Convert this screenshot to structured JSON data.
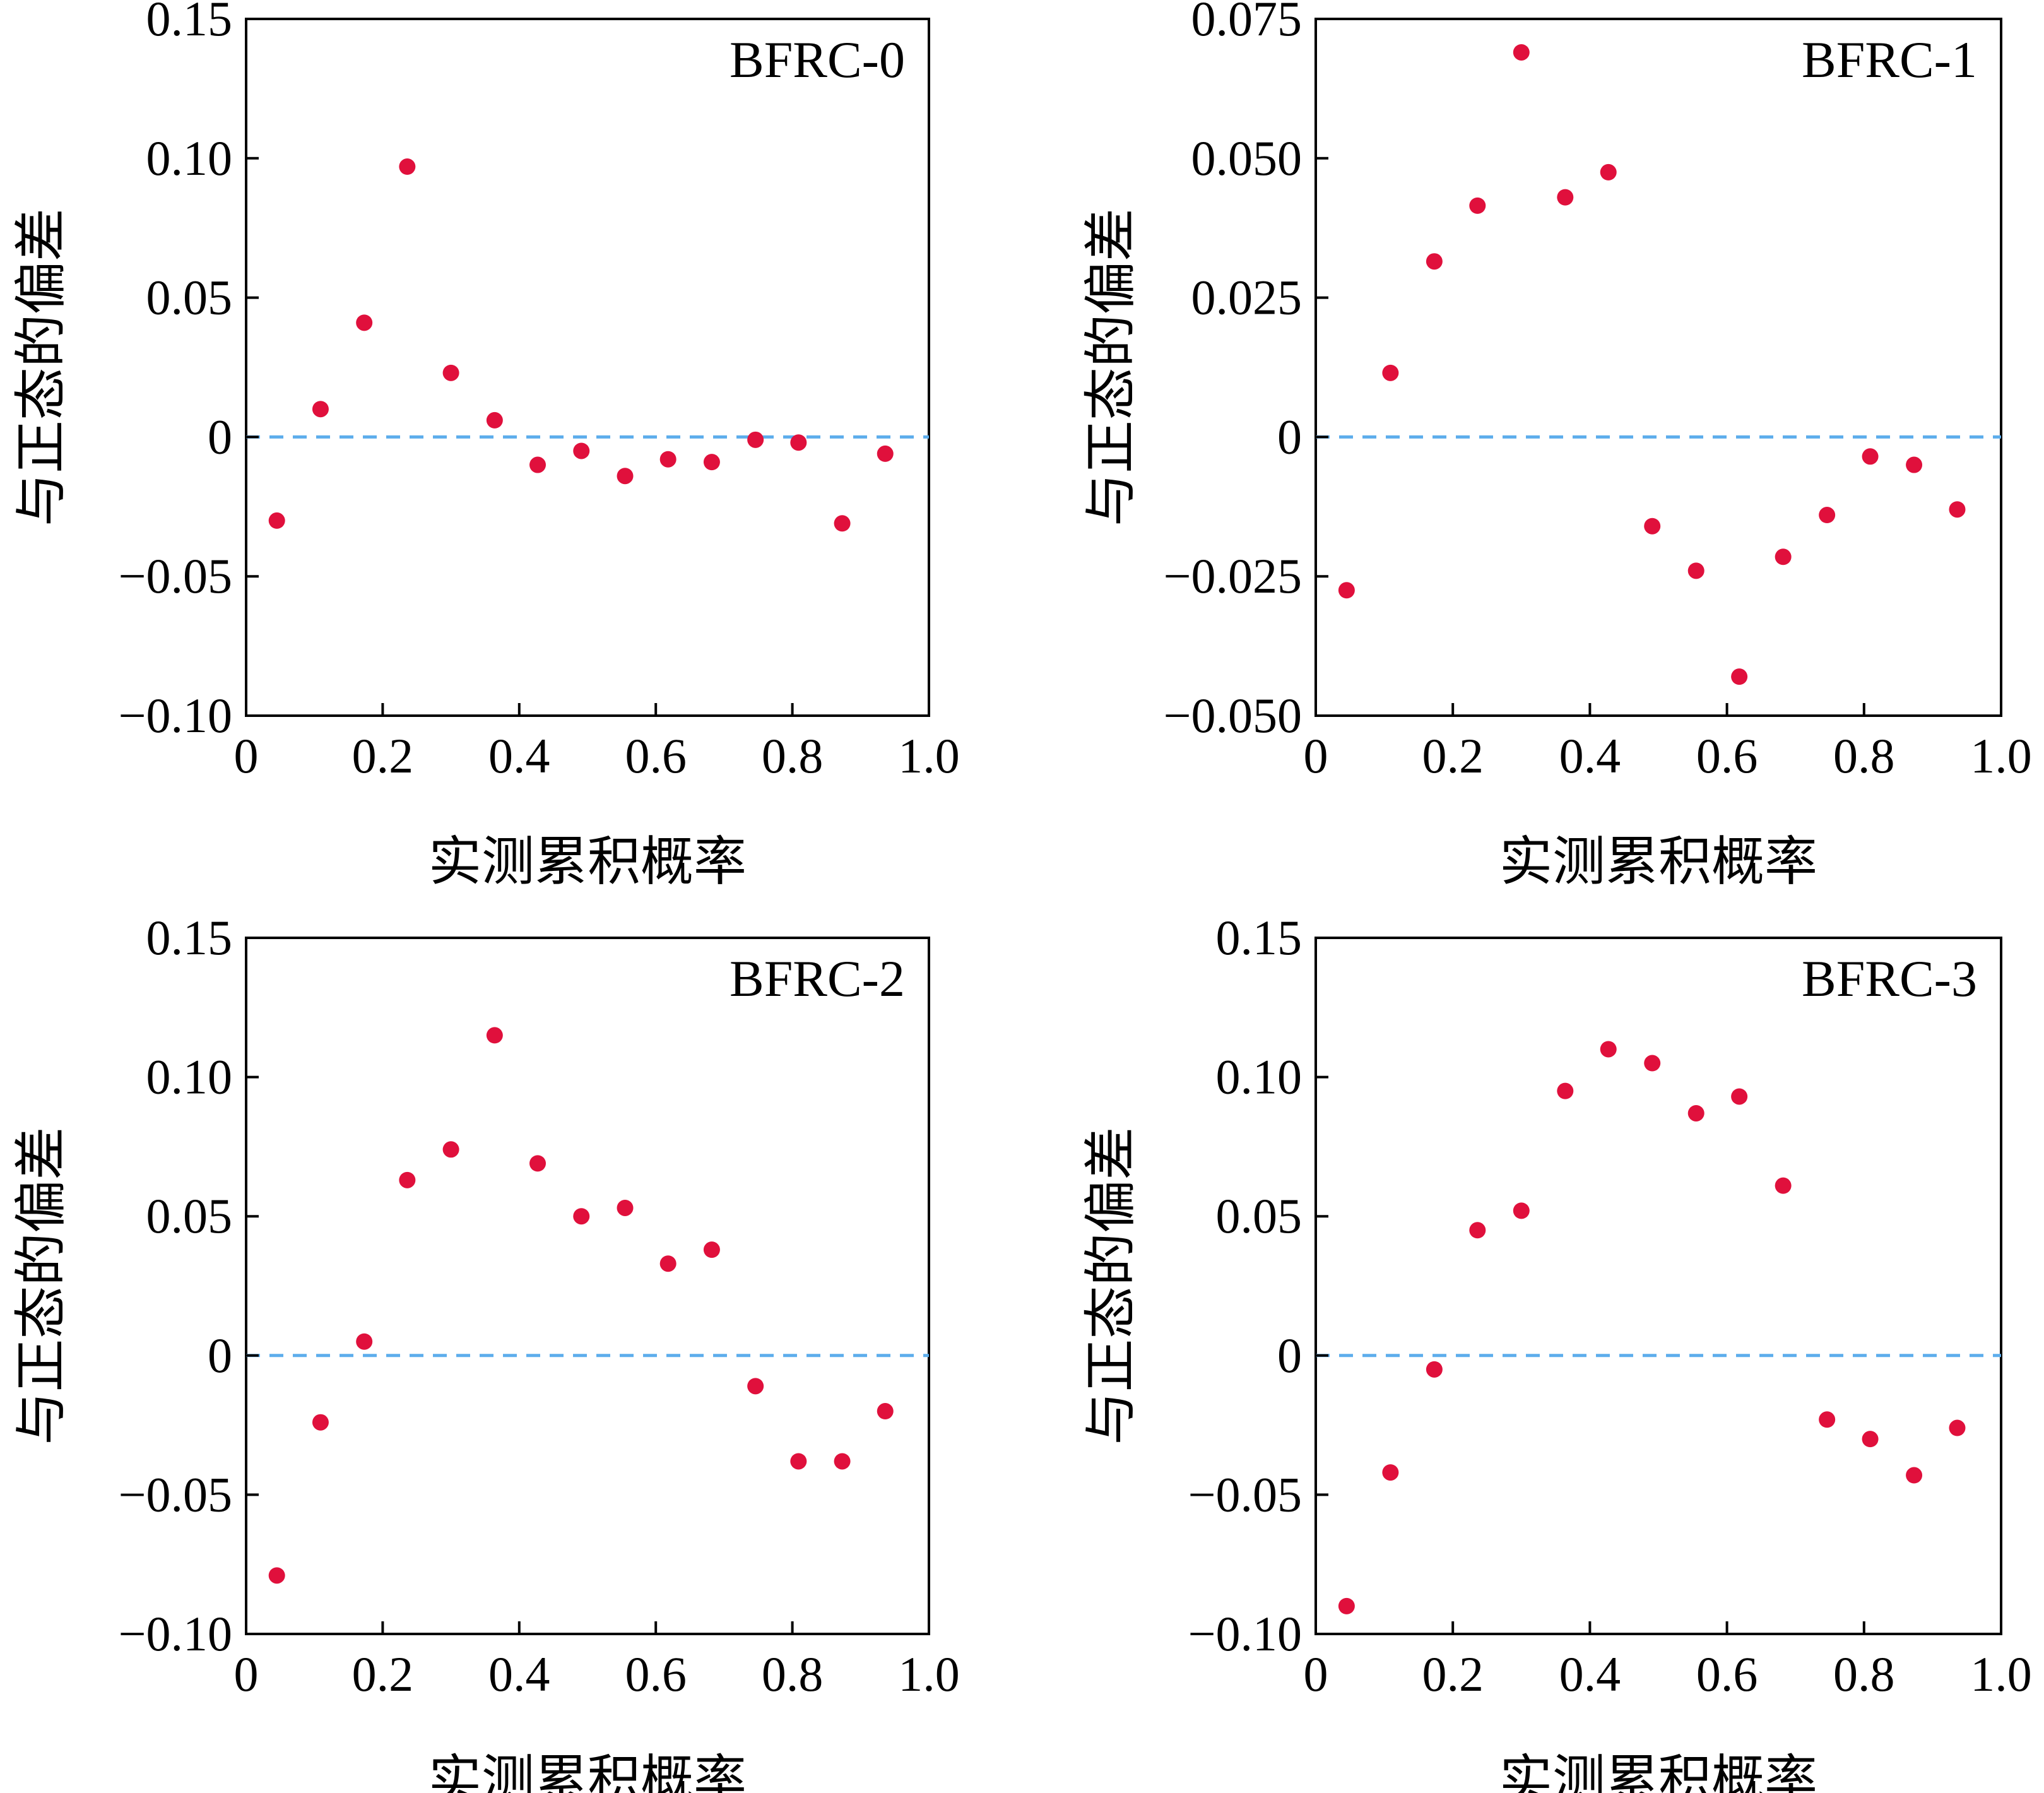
{
  "colors": {
    "point": "#E0103C",
    "zero_line": "#5DADEC",
    "axis": "#000000"
  },
  "chart_data": [
    {
      "type": "scatter",
      "panel": "top-left",
      "title": "BFRC-0",
      "xlabel": "实测累积概率",
      "ylabel": "与正态的偏差",
      "xlim": [
        0,
        1.0
      ],
      "ylim": [
        -0.1,
        0.15
      ],
      "xticks": [
        0,
        0.2,
        0.4,
        0.6,
        0.8,
        1.0
      ],
      "xtick_labels": [
        "0",
        "0.2",
        "0.4",
        "0.6",
        "0.8",
        "1.0"
      ],
      "yticks": [
        -0.1,
        -0.05,
        0,
        0.05,
        0.1,
        0.15
      ],
      "ytick_labels": [
        "−0.10",
        "−0.05",
        "0",
        "0.05",
        "0.10",
        "0.15"
      ],
      "reference_line": 0,
      "x": [
        0.045,
        0.109,
        0.173,
        0.236,
        0.3,
        0.364,
        0.427,
        0.491,
        0.555,
        0.618,
        0.682,
        0.746,
        0.809,
        0.873,
        0.936
      ],
      "y": [
        -0.03,
        0.01,
        0.041,
        0.097,
        0.023,
        0.006,
        -0.01,
        -0.005,
        -0.014,
        -0.008,
        -0.009,
        -0.001,
        -0.002,
        -0.031,
        -0.006
      ]
    },
    {
      "type": "scatter",
      "panel": "top-right",
      "title": "BFRC-1",
      "xlabel": "实测累积概率",
      "ylabel": "与正态的偏差",
      "xlim": [
        0,
        1.0
      ],
      "ylim": [
        -0.05,
        0.075
      ],
      "xticks": [
        0,
        0.2,
        0.4,
        0.6,
        0.8,
        1.0
      ],
      "xtick_labels": [
        "0",
        "0.2",
        "0.4",
        "0.6",
        "0.8",
        "1.0"
      ],
      "yticks": [
        -0.05,
        -0.025,
        0,
        0.025,
        0.05,
        0.075
      ],
      "ytick_labels": [
        "−0.050",
        "−0.025",
        "0",
        "0.025",
        "0.050",
        "0.075"
      ],
      "reference_line": 0,
      "x": [
        0.045,
        0.109,
        0.173,
        0.236,
        0.3,
        0.364,
        0.427,
        0.491,
        0.555,
        0.618,
        0.682,
        0.746,
        0.809,
        0.873,
        0.936
      ],
      "y": [
        -0.0275,
        0.0115,
        0.0315,
        0.0415,
        0.069,
        0.043,
        0.0475,
        -0.016,
        -0.024,
        -0.043,
        -0.0215,
        -0.014,
        -0.0035,
        -0.005,
        -0.013
      ]
    },
    {
      "type": "scatter",
      "panel": "bottom-left",
      "title": "BFRC-2",
      "xlabel": "实测累积概率",
      "ylabel": "与正态的偏差",
      "xlim": [
        0,
        1.0
      ],
      "ylim": [
        -0.1,
        0.15
      ],
      "xticks": [
        0,
        0.2,
        0.4,
        0.6,
        0.8,
        1.0
      ],
      "xtick_labels": [
        "0",
        "0.2",
        "0.4",
        "0.6",
        "0.8",
        "1.0"
      ],
      "yticks": [
        -0.1,
        -0.05,
        0,
        0.05,
        0.1,
        0.15
      ],
      "ytick_labels": [
        "−0.10",
        "−0.05",
        "0",
        "0.05",
        "0.10",
        "0.15"
      ],
      "reference_line": 0,
      "x": [
        0.045,
        0.109,
        0.173,
        0.236,
        0.3,
        0.364,
        0.427,
        0.491,
        0.555,
        0.618,
        0.682,
        0.746,
        0.809,
        0.873,
        0.936
      ],
      "y": [
        -0.079,
        -0.024,
        0.005,
        0.063,
        0.074,
        0.115,
        0.069,
        0.05,
        0.053,
        0.033,
        0.038,
        -0.011,
        -0.038,
        -0.038,
        -0.02
      ]
    },
    {
      "type": "scatter",
      "panel": "bottom-right",
      "title": "BFRC-3",
      "xlabel": "实测累积概率",
      "ylabel": "与正态的偏差",
      "xlim": [
        0,
        1.0
      ],
      "ylim": [
        -0.1,
        0.15
      ],
      "xticks": [
        0,
        0.2,
        0.4,
        0.6,
        0.8,
        1.0
      ],
      "xtick_labels": [
        "0",
        "0.2",
        "0.4",
        "0.6",
        "0.8",
        "1.0"
      ],
      "yticks": [
        -0.1,
        -0.05,
        0,
        0.05,
        0.1,
        0.15
      ],
      "ytick_labels": [
        "−0.10",
        "−0.05",
        "0",
        "0.05",
        "0.10",
        "0.15"
      ],
      "reference_line": 0,
      "x": [
        0.045,
        0.109,
        0.173,
        0.236,
        0.3,
        0.364,
        0.427,
        0.491,
        0.555,
        0.618,
        0.682,
        0.746,
        0.809,
        0.873,
        0.936
      ],
      "y": [
        -0.09,
        -0.042,
        -0.005,
        0.045,
        0.052,
        0.095,
        0.11,
        0.105,
        0.087,
        0.093,
        0.061,
        -0.023,
        -0.03,
        -0.043,
        -0.026
      ]
    }
  ]
}
